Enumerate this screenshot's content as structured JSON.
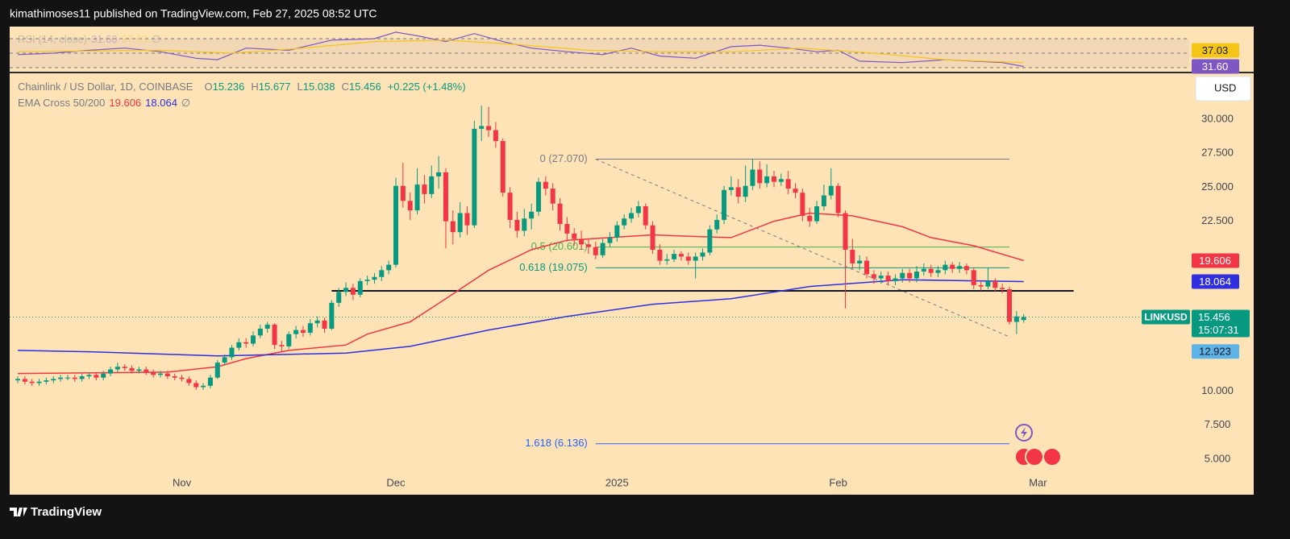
{
  "page": {
    "publisher_line": "kimathimoses11 published on TradingView.com, Feb 27, 2025 08:52 UTC",
    "brand": "TradingView",
    "currency_button": "USD"
  },
  "chart_data": [
    {
      "type": "candlestick",
      "title": "Chainlink / US Dollar, 1D, COINBASE",
      "ohlc_prefixes": [
        "O",
        "H",
        "L",
        "C"
      ],
      "change": "+0.225 (+1.48%)",
      "up_color": "#089981",
      "down_color": "#f23645",
      "open": [
        10.8,
        10.9,
        10.7,
        10.6,
        10.7,
        10.8,
        10.9,
        11.0,
        11.0,
        10.9,
        11.1,
        11.2,
        11.0,
        11.3,
        11.6,
        11.8,
        11.7,
        11.5,
        11.6,
        11.4,
        11.2,
        11.3,
        11.1,
        11.0,
        10.9,
        10.6,
        10.3,
        10.4,
        11.0,
        12.1,
        12.5,
        13.2,
        13.6,
        13.5,
        14.1,
        14.6,
        14.9,
        13.4,
        13.3,
        14.2,
        14.5,
        14.3,
        15.0,
        15.2,
        14.6,
        16.5,
        17.3,
        17.6,
        17.1,
        18.1,
        18.2,
        18.4,
        18.9,
        19.3,
        25.1,
        24.0,
        23.3,
        25.2,
        24.5,
        25.8,
        26.1,
        22.5,
        21.7,
        23.1,
        22.2,
        29.3,
        29.5,
        29.2,
        28.4,
        24.6,
        22.6,
        21.8,
        22.7,
        23.2,
        25.4,
        24.9,
        23.8,
        22.3,
        21.6,
        21.2,
        20.8,
        20.6,
        20.0,
        20.9,
        21.3,
        22.2,
        22.7,
        23.1,
        23.6,
        22.2,
        20.4,
        19.6,
        19.7,
        20.1,
        19.9,
        19.6,
        19.9,
        20.2,
        21.9,
        22.6,
        24.8,
        25.0,
        24.3,
        25.1,
        26.3,
        25.3,
        25.8,
        25.4,
        25.6,
        24.9,
        24.6,
        22.9,
        22.5,
        23.6,
        24.4,
        25.1,
        23.1,
        20.4,
        19.4,
        19.6,
        18.6,
        18.3,
        18.5,
        18.1,
        18.3,
        18.7,
        18.3,
        18.8,
        19.0,
        18.7,
        18.9,
        19.3,
        19.0,
        19.2,
        18.9,
        17.8,
        17.7,
        18.1,
        17.6,
        17.5,
        15.1,
        15.236
      ],
      "high": [
        11.1,
        11.1,
        10.9,
        10.9,
        11.0,
        11.1,
        11.2,
        11.2,
        11.2,
        11.3,
        11.4,
        11.4,
        11.5,
        11.8,
        12.1,
        12.0,
        11.9,
        11.8,
        11.8,
        11.6,
        11.5,
        11.5,
        11.3,
        11.2,
        11.1,
        10.8,
        10.6,
        11.2,
        12.3,
        12.7,
        13.4,
        13.9,
        13.9,
        14.4,
        14.9,
        15.1,
        15.0,
        13.7,
        14.4,
        14.8,
        14.8,
        15.3,
        15.5,
        15.4,
        16.7,
        17.6,
        18.0,
        17.9,
        18.3,
        18.5,
        18.7,
        19.2,
        19.6,
        25.7,
        26.8,
        24.6,
        26.4,
        25.9,
        26.6,
        27.3,
        26.4,
        23.3,
        23.9,
        23.6,
        29.9,
        31.0,
        30.9,
        29.8,
        28.6,
        25.0,
        23.2,
        23.4,
        23.8,
        25.7,
        25.8,
        25.3,
        24.2,
        22.8,
        22.0,
        21.8,
        21.2,
        21.0,
        21.2,
        21.7,
        22.5,
        23.0,
        23.5,
        24.0,
        23.8,
        22.5,
        20.8,
        20.1,
        20.4,
        20.3,
        20.2,
        20.2,
        20.5,
        22.2,
        23.0,
        25.1,
        25.8,
        25.6,
        26.6,
        27.1,
        26.9,
        26.7,
        26.2,
        26.0,
        26.2,
        25.3,
        24.9,
        23.5,
        24.0,
        25.2,
        26.4,
        25.3,
        23.3,
        21.2,
        20.0,
        19.9,
        18.9,
        18.8,
        18.8,
        18.6,
        19.0,
        19.0,
        19.2,
        19.4,
        19.3,
        19.2,
        19.6,
        19.5,
        19.5,
        19.4,
        19.1,
        18.1,
        19.1,
        18.3,
        17.9,
        17.7,
        15.9,
        15.677
      ],
      "low": [
        10.6,
        10.5,
        10.4,
        10.4,
        10.5,
        10.6,
        10.7,
        10.8,
        10.7,
        10.7,
        10.9,
        10.8,
        10.8,
        11.1,
        11.4,
        11.5,
        11.3,
        11.3,
        11.2,
        11.0,
        11.0,
        10.9,
        10.8,
        10.7,
        10.4,
        10.1,
        10.1,
        10.2,
        10.9,
        11.9,
        12.3,
        13.0,
        13.2,
        13.3,
        13.9,
        14.3,
        13.1,
        12.9,
        13.1,
        13.9,
        14.0,
        14.1,
        14.7,
        14.3,
        14.5,
        16.2,
        17.0,
        16.7,
        16.9,
        17.8,
        17.9,
        18.1,
        18.6,
        19.1,
        23.5,
        22.6,
        23.0,
        23.8,
        24.2,
        24.9,
        20.5,
        20.8,
        21.3,
        21.5,
        22.0,
        28.4,
        28.7,
        27.9,
        24.3,
        22.0,
        21.3,
        21.4,
        21.9,
        22.9,
        24.4,
        23.3,
        21.8,
        21.0,
        20.7,
        20.4,
        20.1,
        19.7,
        19.8,
        20.6,
        21.0,
        21.9,
        22.4,
        22.8,
        21.9,
        20.1,
        19.3,
        19.3,
        19.5,
        19.6,
        19.3,
        18.3,
        19.6,
        20.0,
        21.6,
        22.3,
        24.4,
        23.8,
        23.9,
        24.8,
        24.9,
        25.0,
        25.0,
        25.1,
        24.5,
        24.2,
        22.5,
        22.1,
        22.3,
        23.3,
        24.1,
        22.8,
        16.1,
        19.0,
        18.9,
        18.3,
        17.9,
        17.9,
        17.8,
        17.8,
        18.0,
        18.0,
        18.0,
        18.5,
        18.4,
        18.4,
        18.6,
        18.7,
        18.7,
        18.6,
        17.5,
        17.4,
        17.5,
        17.3,
        17.2,
        14.9,
        14.2,
        15.038
      ],
      "close": [
        10.9,
        10.7,
        10.6,
        10.7,
        10.8,
        10.9,
        11.0,
        11.0,
        10.9,
        11.1,
        11.2,
        11.0,
        11.3,
        11.6,
        11.8,
        11.7,
        11.5,
        11.6,
        11.4,
        11.2,
        11.3,
        11.1,
        11.0,
        10.9,
        10.6,
        10.3,
        10.4,
        11.0,
        12.1,
        12.5,
        13.2,
        13.6,
        13.5,
        14.1,
        14.6,
        14.9,
        13.4,
        13.3,
        14.2,
        14.5,
        14.3,
        15.0,
        15.2,
        14.6,
        16.5,
        17.3,
        17.6,
        17.1,
        18.1,
        18.2,
        18.4,
        18.9,
        19.3,
        25.1,
        24.0,
        23.3,
        25.2,
        24.5,
        25.8,
        26.1,
        22.5,
        21.7,
        23.1,
        22.2,
        29.3,
        29.5,
        29.2,
        28.4,
        24.6,
        22.6,
        21.8,
        22.7,
        23.2,
        25.4,
        24.9,
        23.8,
        22.3,
        21.6,
        21.2,
        20.8,
        20.6,
        20.0,
        20.9,
        21.3,
        22.2,
        22.7,
        23.1,
        23.6,
        22.2,
        20.4,
        19.6,
        19.7,
        20.1,
        19.9,
        19.6,
        19.9,
        20.2,
        21.9,
        22.6,
        24.8,
        25.0,
        24.3,
        25.1,
        26.3,
        25.3,
        25.8,
        25.4,
        25.6,
        24.9,
        24.6,
        22.9,
        22.5,
        23.6,
        24.4,
        25.1,
        23.1,
        20.4,
        19.4,
        19.6,
        18.6,
        18.3,
        18.5,
        18.1,
        18.3,
        18.7,
        18.3,
        18.8,
        19.0,
        18.7,
        18.9,
        19.3,
        19.0,
        19.2,
        18.9,
        17.8,
        17.7,
        18.1,
        17.6,
        17.5,
        15.1,
        15.5,
        15.456
      ],
      "xlim": [
        -1.13,
        164.2
      ],
      "xticks": [
        {
          "value": 23,
          "label": "Nov"
        },
        {
          "value": 53,
          "label": "Dec"
        },
        {
          "value": 84,
          "label": "2025"
        },
        {
          "value": 115,
          "label": "Feb"
        },
        {
          "value": 143,
          "label": "Mar"
        }
      ],
      "ylim": [
        2.39,
        33.32
      ],
      "yticks": [
        {
          "value": 5,
          "label": "5.000"
        },
        {
          "value": 7.5,
          "label": "7.500"
        },
        {
          "value": 10,
          "label": "10.000"
        },
        {
          "value": 22.5,
          "label": "22.500"
        },
        {
          "value": 25,
          "label": "25.000"
        },
        {
          "value": 27.5,
          "label": "27.500"
        },
        {
          "value": 30,
          "label": "30.000"
        }
      ],
      "indicator": {
        "title": "EMA Cross 50/200",
        "null_symbol": "∅",
        "lines": [
          {
            "color": "#f23645",
            "x": [
              0,
              21,
              28,
              32,
              38,
              46,
              49,
              55,
              60,
              66,
              72,
              77,
              83,
              89,
              94,
              100,
              106,
              111,
              117,
              124,
              128,
              134,
              141
            ],
            "values": [
              11.3,
              11.4,
              11.8,
              12.4,
              13.0,
              13.4,
              14.2,
              15.1,
              16.8,
              18.9,
              20.4,
              21.1,
              21.3,
              21.5,
              21.4,
              21.3,
              22.5,
              23.1,
              22.9,
              22.1,
              21.3,
              20.7,
              19.606
            ]
          },
          {
            "color": "#2f2fe0",
            "x": [
              0,
              10,
              28,
              46,
              55,
              66,
              77,
              89,
              100,
              111,
              124,
              141
            ],
            "values": [
              13.0,
              12.9,
              12.6,
              12.8,
              13.3,
              14.5,
              15.5,
              16.4,
              16.8,
              17.7,
              18.2,
              18.064
            ]
          }
        ]
      },
      "fib_range": [
        81,
        139
      ],
      "fib_levels": [
        {
          "label": "0 (27.070)",
          "value": 27.07,
          "color": "#787b86"
        },
        {
          "label": "0.5 (20.601)",
          "value": 20.601,
          "color": "#4caf50"
        },
        {
          "label": "0.618 (19.075)",
          "value": 19.075,
          "color": "#089981"
        },
        {
          "label": "1.618 (6.136)",
          "value": 6.136,
          "color": "#2962ff"
        }
      ],
      "support_line": {
        "x": [
          44,
          148
        ],
        "value": 17.38
      },
      "trend_line": {
        "x": [
          81,
          139
        ],
        "values": [
          27.07,
          14.0
        ]
      },
      "symbol": "LINKUSD",
      "countdown": "15:07:31",
      "marker": 12.923
    },
    {
      "type": "line",
      "title": "RSI (14, close)",
      "null_symbol": "∅",
      "xlim": [
        -1.13,
        164.2
      ],
      "ylim": [
        23.3,
        86.7
      ],
      "levels": [
        70,
        50,
        30
      ],
      "series": [
        {
          "color": "#7e57c2",
          "x": [
            0,
            5,
            10,
            15,
            20,
            25,
            28,
            32,
            38,
            44,
            50,
            53,
            56,
            60,
            64,
            68,
            72,
            77,
            82,
            86,
            90,
            95,
            100,
            104,
            108,
            112,
            115,
            118,
            124,
            130,
            134,
            138,
            141
          ],
          "values": [
            48,
            50,
            54,
            57,
            52,
            43,
            41,
            57,
            54,
            68,
            70,
            79,
            74,
            66,
            77,
            66,
            57,
            52,
            48,
            57,
            46,
            43,
            59,
            61,
            57,
            52,
            54,
            39,
            37,
            41,
            39,
            37,
            31.6
          ],
          "last_label": "31.60"
        },
        {
          "color": "#f5c518",
          "x": [
            0,
            10,
            20,
            30,
            40,
            50,
            60,
            70,
            80,
            90,
            100,
            110,
            120,
            130,
            141
          ],
          "values": [
            52,
            53,
            54,
            50,
            57,
            66,
            68,
            62,
            54,
            52,
            52,
            57,
            50,
            41,
            37.03
          ],
          "last_label": "37.03"
        }
      ]
    }
  ]
}
